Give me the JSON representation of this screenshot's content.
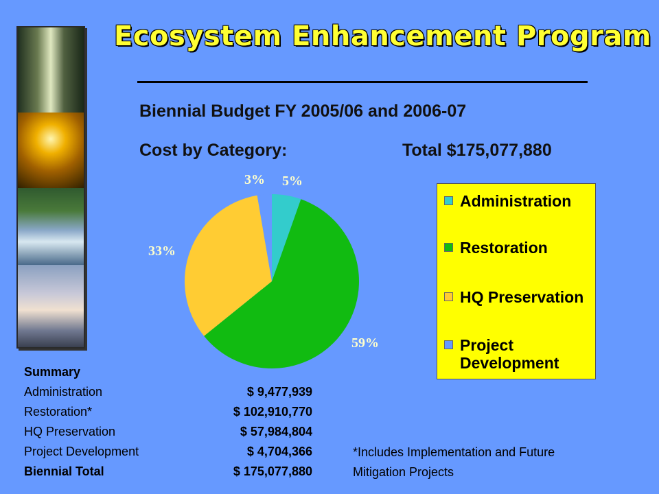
{
  "title": "Ecosystem Enhancement Program",
  "subtitle": "Biennial Budget FY 2005/06 and 2006-07",
  "cost_label": "Cost by Category:",
  "total_label": "Total $175,077,880",
  "colors": {
    "background": "#6699ff",
    "title": "#ffff33",
    "legend_bg": "#ffff00",
    "administration": "#33cccc",
    "restoration": "#11bb11",
    "hq_preservation": "#ffcc33",
    "project_development": "#6699ff"
  },
  "chart_data": {
    "type": "pie",
    "title": "",
    "categories": [
      "Administration",
      "Restoration",
      "HQ Preservation",
      "Project Development"
    ],
    "values": [
      9477939,
      102910770,
      57984804,
      4704366
    ],
    "labels": [
      "5%",
      "59%",
      "33%",
      "3%"
    ],
    "colors": [
      "#33cccc",
      "#11bb11",
      "#ffcc33",
      "#6699ff"
    ],
    "legend_position": "right"
  },
  "legend": {
    "items": [
      "Administration",
      "Restoration",
      "HQ Preservation",
      "Project Development"
    ]
  },
  "summary": {
    "heading": "Summary",
    "rows": [
      {
        "label": "Administration",
        "value": "$  9,477,939"
      },
      {
        "label": "Restoration*",
        "value": "$  102,910,770"
      },
      {
        "label": "HQ Preservation",
        "value": "$  57,984,804"
      },
      {
        "label": "Project Development",
        "value": "$ 4,704,366"
      }
    ],
    "total": {
      "label": "Biennial Total",
      "value": "$ 175,077,880"
    }
  },
  "footnote": "*Includes Implementation and Future Mitigation Projects"
}
